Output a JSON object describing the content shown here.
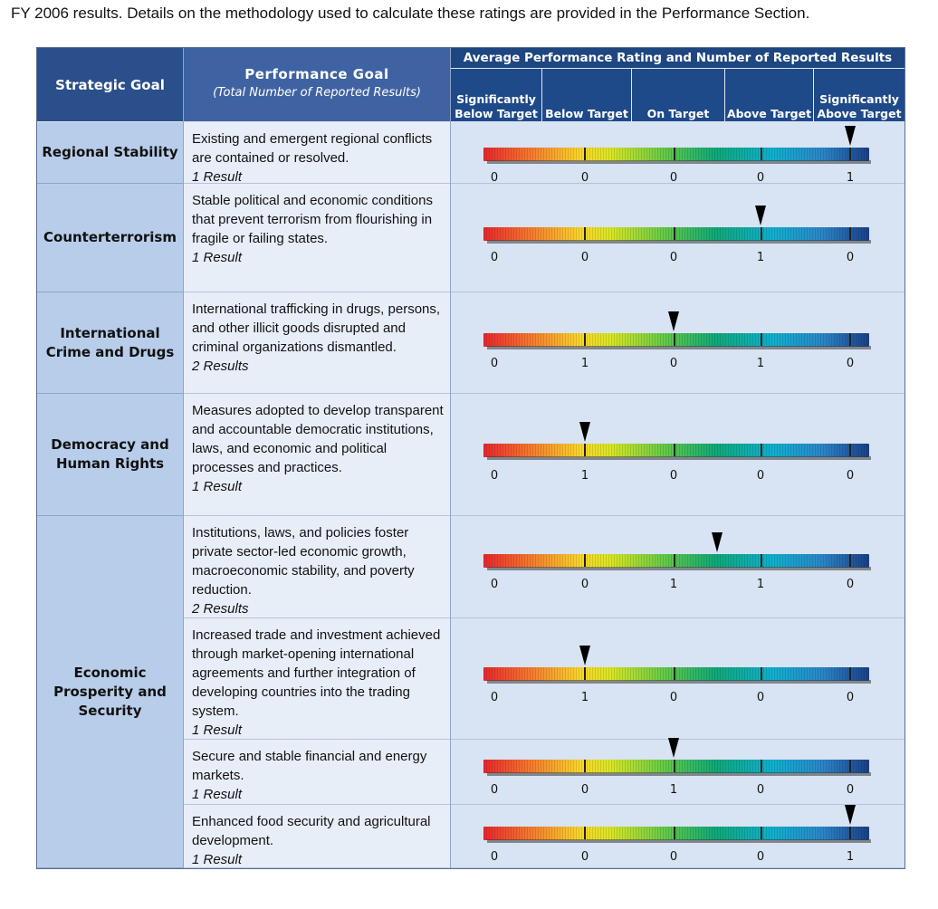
{
  "intro_text": "FY 2006 results. Details on the methodology used to calculate these ratings are provided in the Performance Section.",
  "header": {
    "strategic_goal": "Strategic Goal",
    "performance_goal": "Performance Goal",
    "performance_goal_sub": "(Total Number of Reported Results)",
    "average_rating": "Average Performance Rating and Number of Reported Results",
    "categories": [
      "Significantly Below Target",
      "Below Target",
      "On Target",
      "Above Target",
      "Significantly Above Target"
    ]
  },
  "strategic_goals": [
    {
      "name": "Regional Stability"
    },
    {
      "name": "Counterterrorism"
    },
    {
      "name": "International Crime and Drugs"
    },
    {
      "name": "Democracy and Human Rights"
    },
    {
      "name": "Economic Prosperity and Security"
    }
  ],
  "rows": [
    {
      "goal": "Existing and emergent regional conflicts are contained or resolved.",
      "results": "1 Result",
      "counts": [
        0,
        0,
        0,
        0,
        1
      ],
      "rating": 4.0
    },
    {
      "goal": "Stable political and economic conditions that prevent terrorism from flourishing in fragile or failing states.",
      "results": "1 Result",
      "counts": [
        0,
        0,
        0,
        1,
        0
      ],
      "rating": 3.0
    },
    {
      "goal": "International trafficking in drugs, persons, and other illicit goods disrupted and criminal organizations dismantled.",
      "results": "2 Results",
      "counts": [
        0,
        1,
        0,
        1,
        0
      ],
      "rating": 2.0
    },
    {
      "goal": "Measures adopted to develop transparent and accountable democratic institutions, laws, and economic and political processes and practices.",
      "results": "1 Result",
      "counts": [
        0,
        1,
        0,
        0,
        0
      ],
      "rating": 1.0
    },
    {
      "goal": "Institutions, laws, and policies foster private sector-led economic growth, macroeconomic stability, and poverty reduction.",
      "results": "2 Results",
      "counts": [
        0,
        0,
        1,
        1,
        0
      ],
      "rating": 2.5
    },
    {
      "goal": "Increased trade and investment achieved through market-opening international agreements and further integration of developing countries into the trading system.",
      "results": "1 Result",
      "counts": [
        0,
        1,
        0,
        0,
        0
      ],
      "rating": 1.0
    },
    {
      "goal": "Secure and stable financial and energy markets.",
      "results": "1 Result",
      "counts": [
        0,
        0,
        1,
        0,
        0
      ],
      "rating": 2.0
    },
    {
      "goal": "Enhanced food security and agricultural development.",
      "results": "1 Result",
      "counts": [
        0,
        0,
        0,
        0,
        1
      ],
      "rating": 4.0
    }
  ]
}
